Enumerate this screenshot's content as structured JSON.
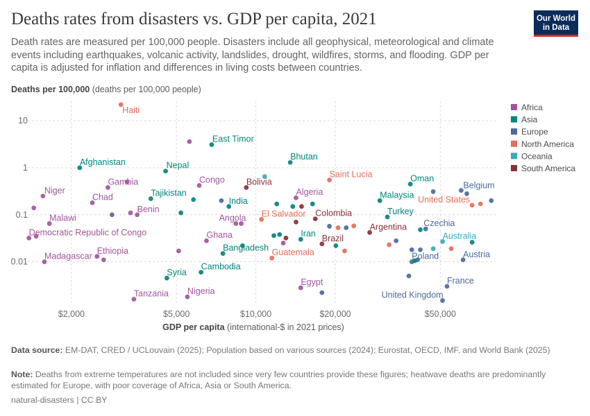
{
  "header": {
    "title": "Deaths rates from disasters vs. GDP per capita, 2021",
    "subtitle": "Death rates are measured per 100,000 people. Disasters include all geophysical, meteorological and climate events including earthquakes, volcanic activity, landslides, drought, wildfires, storms, and flooding. GDP per capita is adjusted for inflation and differences in living costs between countries.",
    "logo_line1": "Our World",
    "logo_line2": "in Data"
  },
  "footer": {
    "source_label": "Data source:",
    "source_text": "EM-DAT, CRED / UCLouvain (2025); Population based on various sources (2024); Eurostat, OECD, IMF, and World Bank (2025)",
    "note_label": "Note:",
    "note_text": "Deaths from extreme temperatures are not included since very few countries provide these figures; heatwave deaths are predominantly estimated for Europe, with poor coverage of Africa, Asia or South America.",
    "credit": "natural-disasters | CC BY"
  },
  "chart_data": {
    "type": "scatter",
    "ylabel_bold": "Deaths per 100,000",
    "ylabel_rest": " (deaths per 100,000 people)",
    "xlabel_bold": "GDP per capita",
    "xlabel_rest": " (international-$ in 2021 prices)",
    "xscale": "log",
    "yscale": "log",
    "xlim": [
      1350,
      83000
    ],
    "ylim": [
      0.0012,
      26
    ],
    "x_ticks": [
      {
        "value": 2000,
        "label": "$2,000"
      },
      {
        "value": 5000,
        "label": "$5,000"
      },
      {
        "value": 10000,
        "label": "$10,000"
      },
      {
        "value": 20000,
        "label": "$20,000"
      },
      {
        "value": 50000,
        "label": "$50,000"
      }
    ],
    "y_ticks": [
      {
        "value": 10,
        "label": "10"
      },
      {
        "value": 1,
        "label": "1"
      },
      {
        "value": 0.1,
        "label": "0.1"
      },
      {
        "value": 0.01,
        "label": "0.01"
      }
    ],
    "grid": true,
    "legend_placement": "right",
    "legend": [
      {
        "name": "Africa",
        "color": "#a2559c"
      },
      {
        "name": "Asia",
        "color": "#00847e"
      },
      {
        "name": "Europe",
        "color": "#4c6a9c"
      },
      {
        "name": "North America",
        "color": "#e56e5a"
      },
      {
        "name": "Oceania",
        "color": "#38aaba"
      },
      {
        "name": "South America",
        "color": "#883039"
      }
    ],
    "points": [
      {
        "label": "Haiti",
        "region": "North America",
        "x": 3080,
        "y": 22,
        "anchor": "start",
        "dx": 2,
        "dy": 12
      },
      {
        "label": "East Timor",
        "region": "Asia",
        "x": 6800,
        "y": 3.1,
        "anchor": "start",
        "dx": 1,
        "dy": -4
      },
      {
        "label": "Bhutan",
        "region": "Asia",
        "x": 13500,
        "y": 1.3,
        "anchor": "start",
        "dx": 0,
        "dy": -4
      },
      {
        "label": "Afghanistan",
        "region": "Asia",
        "x": 2150,
        "y": 1.0,
        "anchor": "start",
        "dx": 0,
        "dy": -4
      },
      {
        "label": "Nepal",
        "region": "Asia",
        "x": 4550,
        "y": 0.85,
        "anchor": "start",
        "dx": 1,
        "dy": -4
      },
      {
        "label": "Saint Lucia",
        "region": "North America",
        "x": 19000,
        "y": 0.55,
        "anchor": "start",
        "dx": 0,
        "dy": -4
      },
      {
        "label": "Oman",
        "region": "Asia",
        "x": 38500,
        "y": 0.45,
        "anchor": "start",
        "dx": 0,
        "dy": -4
      },
      {
        "label": "Belgium",
        "region": "Europe",
        "x": 60000,
        "y": 0.33,
        "anchor": "start",
        "dx": 3,
        "dy": -3
      },
      {
        "label": "Gambia",
        "region": "Africa",
        "x": 2750,
        "y": 0.38,
        "anchor": "start",
        "dx": 0,
        "dy": -4
      },
      {
        "label": "Congo",
        "region": "Africa",
        "x": 6100,
        "y": 0.42,
        "anchor": "start",
        "dx": 0,
        "dy": -4
      },
      {
        "label": "Bolivia",
        "region": "South America",
        "x": 9200,
        "y": 0.38,
        "anchor": "start",
        "dx": 0,
        "dy": -4
      },
      {
        "label": "Niger",
        "region": "Africa",
        "x": 1560,
        "y": 0.25,
        "anchor": "start",
        "dx": 2,
        "dy": -4
      },
      {
        "label": "Tajikistan",
        "region": "Asia",
        "x": 4000,
        "y": 0.22,
        "anchor": "start",
        "dx": 0,
        "dy": -4
      },
      {
        "label": "Algeria",
        "region": "Africa",
        "x": 14200,
        "y": 0.23,
        "anchor": "start",
        "dx": 0,
        "dy": -4
      },
      {
        "label": "Malaysia",
        "region": "Asia",
        "x": 29500,
        "y": 0.2,
        "anchor": "start",
        "dx": 0,
        "dy": -4
      },
      {
        "label": "United States",
        "region": "North America",
        "x": 66000,
        "y": 0.16,
        "anchor": "end",
        "dx": -3,
        "dy": -4
      },
      {
        "label": "Chad",
        "region": "Africa",
        "x": 2400,
        "y": 0.18,
        "anchor": "start",
        "dx": 0,
        "dy": -4
      },
      {
        "label": "India",
        "region": "Asia",
        "x": 7900,
        "y": 0.15,
        "anchor": "start",
        "dx": 0,
        "dy": -4
      },
      {
        "label": "Benin",
        "region": "Africa",
        "x": 3550,
        "y": 0.1,
        "anchor": "start",
        "dx": 0,
        "dy": -4
      },
      {
        "label": "Turkey",
        "region": "Asia",
        "x": 31500,
        "y": 0.09,
        "anchor": "start",
        "dx": 0,
        "dy": -4
      },
      {
        "label": "Malawi",
        "region": "Africa",
        "x": 1650,
        "y": 0.065,
        "anchor": "start",
        "dx": 0,
        "dy": -4
      },
      {
        "label": "Angola",
        "region": "Africa",
        "x": 8800,
        "y": 0.065,
        "anchor": "end",
        "dx": 7,
        "dy": -4
      },
      {
        "label": "El Salvador",
        "region": "North America",
        "x": 10500,
        "y": 0.08,
        "anchor": "start",
        "dx": 0,
        "dy": -4
      },
      {
        "label": "Colombia",
        "region": "South America",
        "x": 16800,
        "y": 0.082,
        "anchor": "start",
        "dx": 0,
        "dy": -4
      },
      {
        "label": "Czechia",
        "region": "Europe",
        "x": 44000,
        "y": 0.05,
        "anchor": "start",
        "dx": -3,
        "dy": -4
      },
      {
        "label": "Argentina",
        "region": "South America",
        "x": 27000,
        "y": 0.042,
        "anchor": "start",
        "dx": 0,
        "dy": -4
      },
      {
        "label": "Democratic Republic of Congo",
        "region": "Africa",
        "x": 1380,
        "y": 0.032,
        "anchor": "start",
        "dx": 0,
        "dy": -4
      },
      {
        "label": "Ghana",
        "region": "Africa",
        "x": 6500,
        "y": 0.028,
        "anchor": "start",
        "dx": 0,
        "dy": -4
      },
      {
        "label": "Iran",
        "region": "Asia",
        "x": 14800,
        "y": 0.03,
        "anchor": "start",
        "dx": 0,
        "dy": -4
      },
      {
        "label": "Australia",
        "region": "Oceania",
        "x": 51000,
        "y": 0.027,
        "anchor": "start",
        "dx": 0,
        "dy": -4
      },
      {
        "label": "Brazil",
        "region": "South America",
        "x": 17800,
        "y": 0.024,
        "anchor": "start",
        "dx": 0,
        "dy": -4
      },
      {
        "label": "Bangladesh",
        "region": "Asia",
        "x": 7500,
        "y": 0.015,
        "anchor": "start",
        "dx": 0,
        "dy": -4
      },
      {
        "label": "Ethiopia",
        "region": "Africa",
        "x": 2500,
        "y": 0.013,
        "anchor": "start",
        "dx": 0,
        "dy": -4
      },
      {
        "label": "Madagascar",
        "region": "Africa",
        "x": 1580,
        "y": 0.01,
        "anchor": "start",
        "dx": 0,
        "dy": -4
      },
      {
        "label": "Guatemala",
        "region": "North America",
        "x": 11500,
        "y": 0.012,
        "anchor": "start",
        "dx": 0,
        "dy": -4
      },
      {
        "label": "Poland",
        "region": "Europe",
        "x": 39000,
        "y": 0.01,
        "anchor": "start",
        "dx": 0,
        "dy": -4
      },
      {
        "label": "Austria",
        "region": "Europe",
        "x": 61000,
        "y": 0.011,
        "anchor": "start",
        "dx": 0,
        "dy": -4
      },
      {
        "label": "Cambodia",
        "region": "Asia",
        "x": 6200,
        "y": 0.006,
        "anchor": "start",
        "dx": 0,
        "dy": -4
      },
      {
        "label": "Syria",
        "region": "Asia",
        "x": 4600,
        "y": 0.0045,
        "anchor": "start",
        "dx": 0,
        "dy": -4
      },
      {
        "label": "Egypt",
        "region": "Africa",
        "x": 14800,
        "y": 0.0028,
        "anchor": "start",
        "dx": 0,
        "dy": -4
      },
      {
        "label": "France",
        "region": "Europe",
        "x": 53000,
        "y": 0.003,
        "anchor": "start",
        "dx": 0,
        "dy": -4
      },
      {
        "label": "Nigeria",
        "region": "Africa",
        "x": 5500,
        "y": 0.0018,
        "anchor": "start",
        "dx": 0,
        "dy": -4
      },
      {
        "label": "Tanzania",
        "region": "Africa",
        "x": 3450,
        "y": 0.0016,
        "anchor": "start",
        "dx": 0,
        "dy": -4
      },
      {
        "label": "United Kingdom",
        "region": "Europe",
        "x": 51000,
        "y": 0.0015,
        "anchor": "end",
        "dx": 1,
        "dy": -4
      },
      {
        "label": "",
        "region": "Africa",
        "x": 5600,
        "y": 3.6
      },
      {
        "label": "",
        "region": "Oceania",
        "x": 10800,
        "y": 0.65
      },
      {
        "label": "",
        "region": "Africa",
        "x": 1440,
        "y": 0.14
      },
      {
        "label": "",
        "region": "Europe",
        "x": 7400,
        "y": 0.2
      },
      {
        "label": "",
        "region": "Asia",
        "x": 5800,
        "y": 0.21
      },
      {
        "label": "",
        "region": "Asia",
        "x": 5200,
        "y": 0.11
      },
      {
        "label": "",
        "region": "Africa",
        "x": 3350,
        "y": 0.11
      },
      {
        "label": "",
        "region": "Europe",
        "x": 2850,
        "y": 0.1
      },
      {
        "label": "",
        "region": "Asia",
        "x": 12000,
        "y": 0.17
      },
      {
        "label": "",
        "region": "Asia",
        "x": 13800,
        "y": 0.15
      },
      {
        "label": "",
        "region": "South America",
        "x": 14900,
        "y": 0.15
      },
      {
        "label": "",
        "region": "Asia",
        "x": 16400,
        "y": 0.17
      },
      {
        "label": "",
        "region": "Africa",
        "x": 8400,
        "y": 0.065
      },
      {
        "label": "",
        "region": "Africa",
        "x": 1470,
        "y": 0.035
      },
      {
        "label": "",
        "region": "Asia",
        "x": 11700,
        "y": 0.036
      },
      {
        "label": "",
        "region": "Asia",
        "x": 12300,
        "y": 0.038
      },
      {
        "label": "",
        "region": "South America",
        "x": 13000,
        "y": 0.032
      },
      {
        "label": "",
        "region": "South America",
        "x": 14200,
        "y": 0.07
      },
      {
        "label": "",
        "region": "Europe",
        "x": 19000,
        "y": 0.057
      },
      {
        "label": "",
        "region": "North America",
        "x": 20500,
        "y": 0.053
      },
      {
        "label": "",
        "region": "Europe",
        "x": 22000,
        "y": 0.053
      },
      {
        "label": "",
        "region": "North America",
        "x": 23500,
        "y": 0.058
      },
      {
        "label": "",
        "region": "Asia",
        "x": 42000,
        "y": 0.048
      },
      {
        "label": "",
        "region": "Africa",
        "x": 5100,
        "y": 0.017
      },
      {
        "label": "",
        "region": "Asia",
        "x": 8900,
        "y": 0.022
      },
      {
        "label": "",
        "region": "Africa",
        "x": 12700,
        "y": 0.025
      },
      {
        "label": "",
        "region": "Asia",
        "x": 20100,
        "y": 0.022
      },
      {
        "label": "",
        "region": "North America",
        "x": 21700,
        "y": 0.017
      },
      {
        "label": "",
        "region": "North America",
        "x": 32000,
        "y": 0.023
      },
      {
        "label": "",
        "region": "Europe",
        "x": 34000,
        "y": 0.028
      },
      {
        "label": "",
        "region": "Europe",
        "x": 39000,
        "y": 0.018
      },
      {
        "label": "",
        "region": "Europe",
        "x": 42000,
        "y": 0.018
      },
      {
        "label": "",
        "region": "Oceania",
        "x": 47000,
        "y": 0.019
      },
      {
        "label": "",
        "region": "North America",
        "x": 55000,
        "y": 0.019
      },
      {
        "label": "",
        "region": "Asia",
        "x": 66000,
        "y": 0.026
      },
      {
        "label": "",
        "region": "Africa",
        "x": 2650,
        "y": 0.011
      },
      {
        "label": "",
        "region": "Europe",
        "x": 41000,
        "y": 0.011
      },
      {
        "label": "",
        "region": "Asia",
        "x": 40000,
        "y": 0.0105
      },
      {
        "label": "",
        "region": "Europe",
        "x": 38000,
        "y": 0.005
      },
      {
        "label": "",
        "region": "Europe",
        "x": 17800,
        "y": 0.0022
      },
      {
        "label": "",
        "region": "Europe",
        "x": 47000,
        "y": 0.31
      },
      {
        "label": "",
        "region": "Europe",
        "x": 63000,
        "y": 0.28
      },
      {
        "label": "",
        "region": "North America",
        "x": 71000,
        "y": 0.17
      },
      {
        "label": "",
        "region": "Europe",
        "x": 78000,
        "y": 0.2
      },
      {
        "label": "",
        "region": "Africa",
        "x": 3250,
        "y": 0.5
      }
    ]
  }
}
